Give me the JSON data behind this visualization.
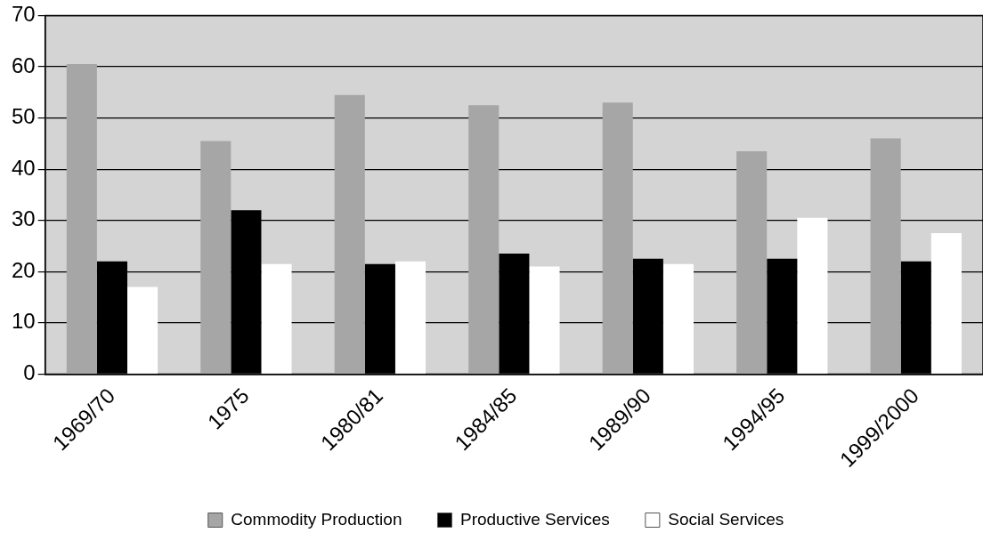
{
  "chart_data": {
    "type": "bar",
    "categories": [
      "1969/70",
      "1975",
      "1980/81",
      "1984/85",
      "1989/90",
      "1994/95",
      "1999/2000"
    ],
    "series": [
      {
        "name": "Commodity Production",
        "color": "#a6a6a6",
        "values": [
          60.5,
          45.5,
          54.5,
          52.5,
          53,
          43.5,
          46
        ]
      },
      {
        "name": "Productive Services",
        "color": "#000000",
        "values": [
          22,
          32,
          21.5,
          23.5,
          22.5,
          22.5,
          22
        ]
      },
      {
        "name": "Social Services",
        "color": "#ffffff",
        "values": [
          17,
          21.5,
          22,
          21,
          21.5,
          30.5,
          27.5
        ]
      }
    ],
    "ylim": [
      0,
      70
    ],
    "yticks": [
      0,
      10,
      20,
      30,
      40,
      50,
      60,
      70
    ],
    "grid": "y",
    "legend": "bottom"
  }
}
